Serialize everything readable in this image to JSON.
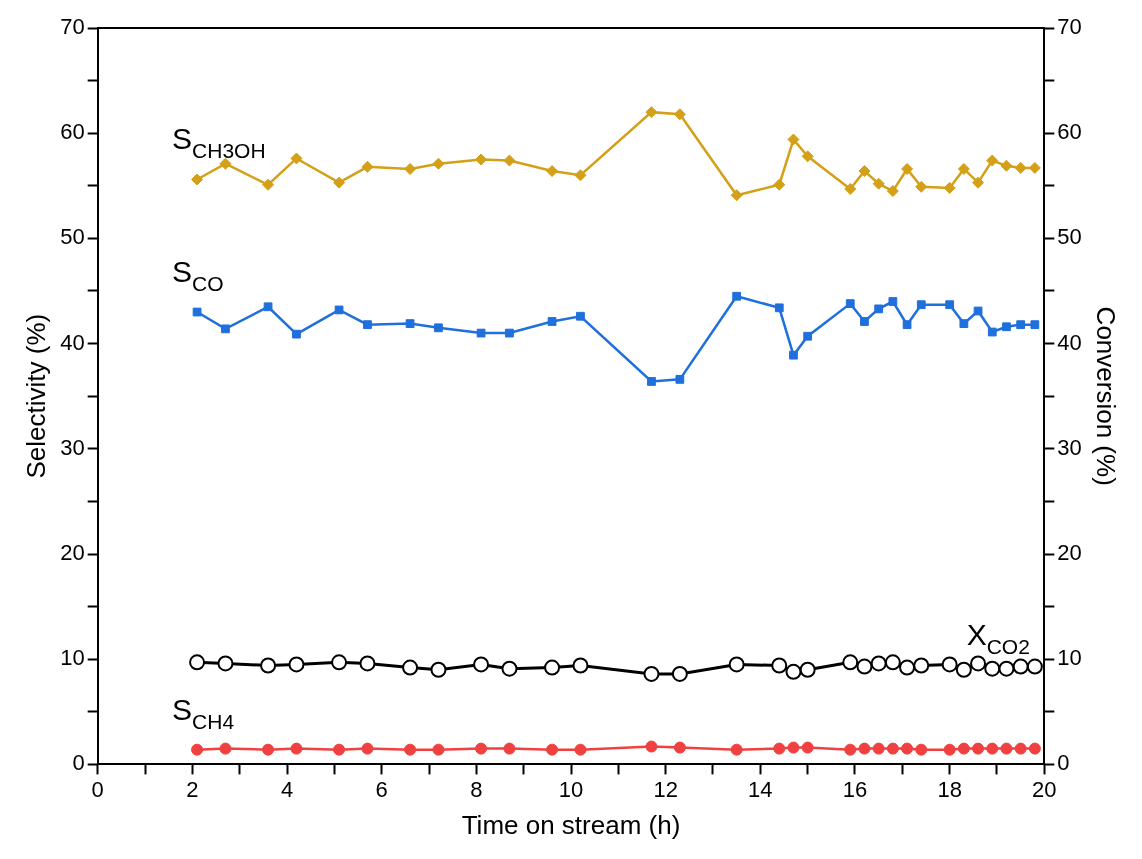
{
  "chart_data": {
    "type": "line",
    "xlabel": "Time on stream (h)",
    "ylabel": "Selectivity (%)",
    "y2label": "Conversion (%)",
    "x": [
      2.1,
      2.7,
      3.6,
      4.2,
      5.1,
      5.7,
      6.6,
      7.2,
      8.1,
      8.7,
      9.6,
      10.2,
      11.7,
      12.3,
      13.5,
      14.4,
      14.7,
      15.0,
      15.9,
      16.2,
      16.5,
      16.8,
      17.1,
      17.4,
      18.0,
      18.3,
      18.6,
      18.9,
      19.2,
      19.5,
      19.8
    ],
    "series": [
      {
        "name": "S$_{CH3OH}$",
        "color": "#d4a017",
        "marker": "diamond",
        "values": [
          55.6,
          57.1,
          55.1,
          57.6,
          55.3,
          56.8,
          56.6,
          57.1,
          57.5,
          57.4,
          56.4,
          56.0,
          62.0,
          61.8,
          54.1,
          55.1,
          59.4,
          57.8,
          54.7,
          56.4,
          55.2,
          54.5,
          56.6,
          54.9,
          54.8,
          56.6,
          55.3,
          57.4,
          56.9,
          56.7,
          56.7
        ]
      },
      {
        "name": "S$_{CO}$",
        "color": "#1f6fdc",
        "marker": "square",
        "values": [
          43.0,
          41.4,
          43.5,
          40.9,
          43.2,
          41.8,
          41.9,
          41.5,
          41.0,
          41.0,
          42.1,
          42.6,
          36.4,
          36.6,
          44.5,
          43.4,
          38.9,
          40.7,
          43.8,
          42.1,
          43.3,
          44.0,
          41.8,
          43.7,
          43.7,
          41.9,
          43.1,
          41.1,
          41.6,
          41.8,
          41.8
        ]
      },
      {
        "name": "X$_{CO2}$",
        "color": "#000000",
        "marker": "circle",
        "axis": "y2",
        "values": [
          9.7,
          9.6,
          9.4,
          9.5,
          9.7,
          9.6,
          9.2,
          9.0,
          9.5,
          9.1,
          9.2,
          9.4,
          8.6,
          8.6,
          9.5,
          9.4,
          8.8,
          9.0,
          9.7,
          9.3,
          9.6,
          9.7,
          9.2,
          9.4,
          9.5,
          9.0,
          9.6,
          9.1,
          9.1,
          9.3,
          9.3
        ]
      },
      {
        "name": "S$_{CH4}$",
        "color": "#f04040",
        "marker": "circle",
        "values": [
          1.4,
          1.5,
          1.4,
          1.5,
          1.4,
          1.5,
          1.4,
          1.4,
          1.5,
          1.5,
          1.4,
          1.4,
          1.7,
          1.6,
          1.4,
          1.5,
          1.6,
          1.6,
          1.4,
          1.5,
          1.5,
          1.5,
          1.5,
          1.4,
          1.4,
          1.5,
          1.5,
          1.5,
          1.5,
          1.5,
          1.5
        ]
      }
    ],
    "xlim": [
      0,
      20
    ],
    "xticks": [
      0,
      {
        "value": 1,
        "label": null
      },
      2,
      {
        "value": 3,
        "label": null
      },
      4,
      {
        "value": 5,
        "label": null
      },
      6,
      {
        "value": 7,
        "label": null
      },
      8,
      {
        "value": 9,
        "label": null
      },
      10,
      {
        "value": 11,
        "label": null
      },
      12,
      {
        "value": 13,
        "label": null
      },
      14,
      {
        "value": 15,
        "label": null
      },
      16,
      {
        "value": 17,
        "label": null
      },
      18,
      {
        "value": 19,
        "label": null
      },
      20
    ],
    "ylim": [
      0,
      70
    ],
    "yticks": [
      0,
      {
        "value": 5,
        "label": null
      },
      10,
      {
        "value": 15,
        "label": null
      },
      20,
      {
        "value": 25,
        "label": null
      },
      30,
      {
        "value": 35,
        "label": null
      },
      40,
      {
        "value": 45,
        "label": null
      },
      50,
      {
        "value": 55,
        "label": null
      },
      60,
      {
        "value": 65,
        "label": null
      },
      70
    ],
    "y2lim": [
      0,
      70
    ],
    "y2ticks": [
      0,
      {
        "value": 5,
        "label": null
      },
      10,
      {
        "value": 15,
        "label": null
      },
      20,
      {
        "value": 25,
        "label": null
      },
      30,
      {
        "value": 35,
        "label": null
      },
      40,
      {
        "value": 45,
        "label": null
      },
      50,
      {
        "value": 55,
        "label": null
      },
      60,
      {
        "value": 65,
        "label": null
      },
      70
    ],
    "grid": false,
    "legend": false,
    "line_style": "solid"
  }
}
